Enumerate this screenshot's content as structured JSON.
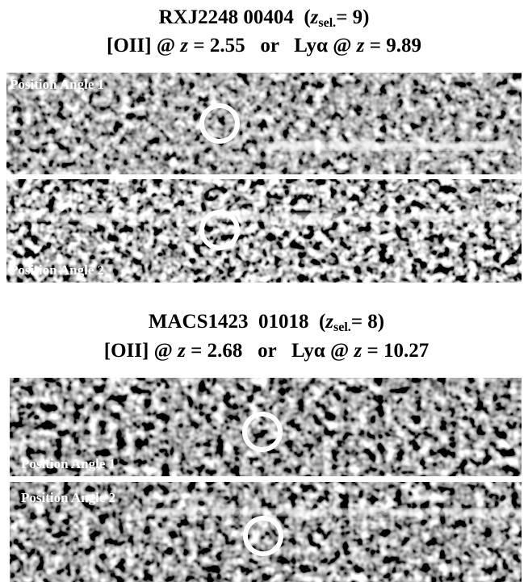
{
  "panels": [
    {
      "title": [
        "RXJ2248 00404  (",
        "z",
        "sel.",
        "= 9)"
      ],
      "subtitle": [
        "[OII] @ ",
        "z",
        " = 2.55   or   Lyα @ ",
        "z",
        " = 9.89"
      ],
      "strips": [
        {
          "label": "Position Angle 1"
        },
        {
          "label": "Position Angle 2"
        }
      ]
    },
    {
      "title": [
        "MACS1423  01018  (",
        "z",
        "sel.",
        "= 8)"
      ],
      "subtitle": [
        "[OII] @ ",
        "z",
        " = 2.68   or   Lyα @ ",
        "z",
        " = 10.27"
      ],
      "strips": [
        {
          "label": "Position Angle 1"
        },
        {
          "label": "Position Angle 2"
        }
      ]
    }
  ]
}
